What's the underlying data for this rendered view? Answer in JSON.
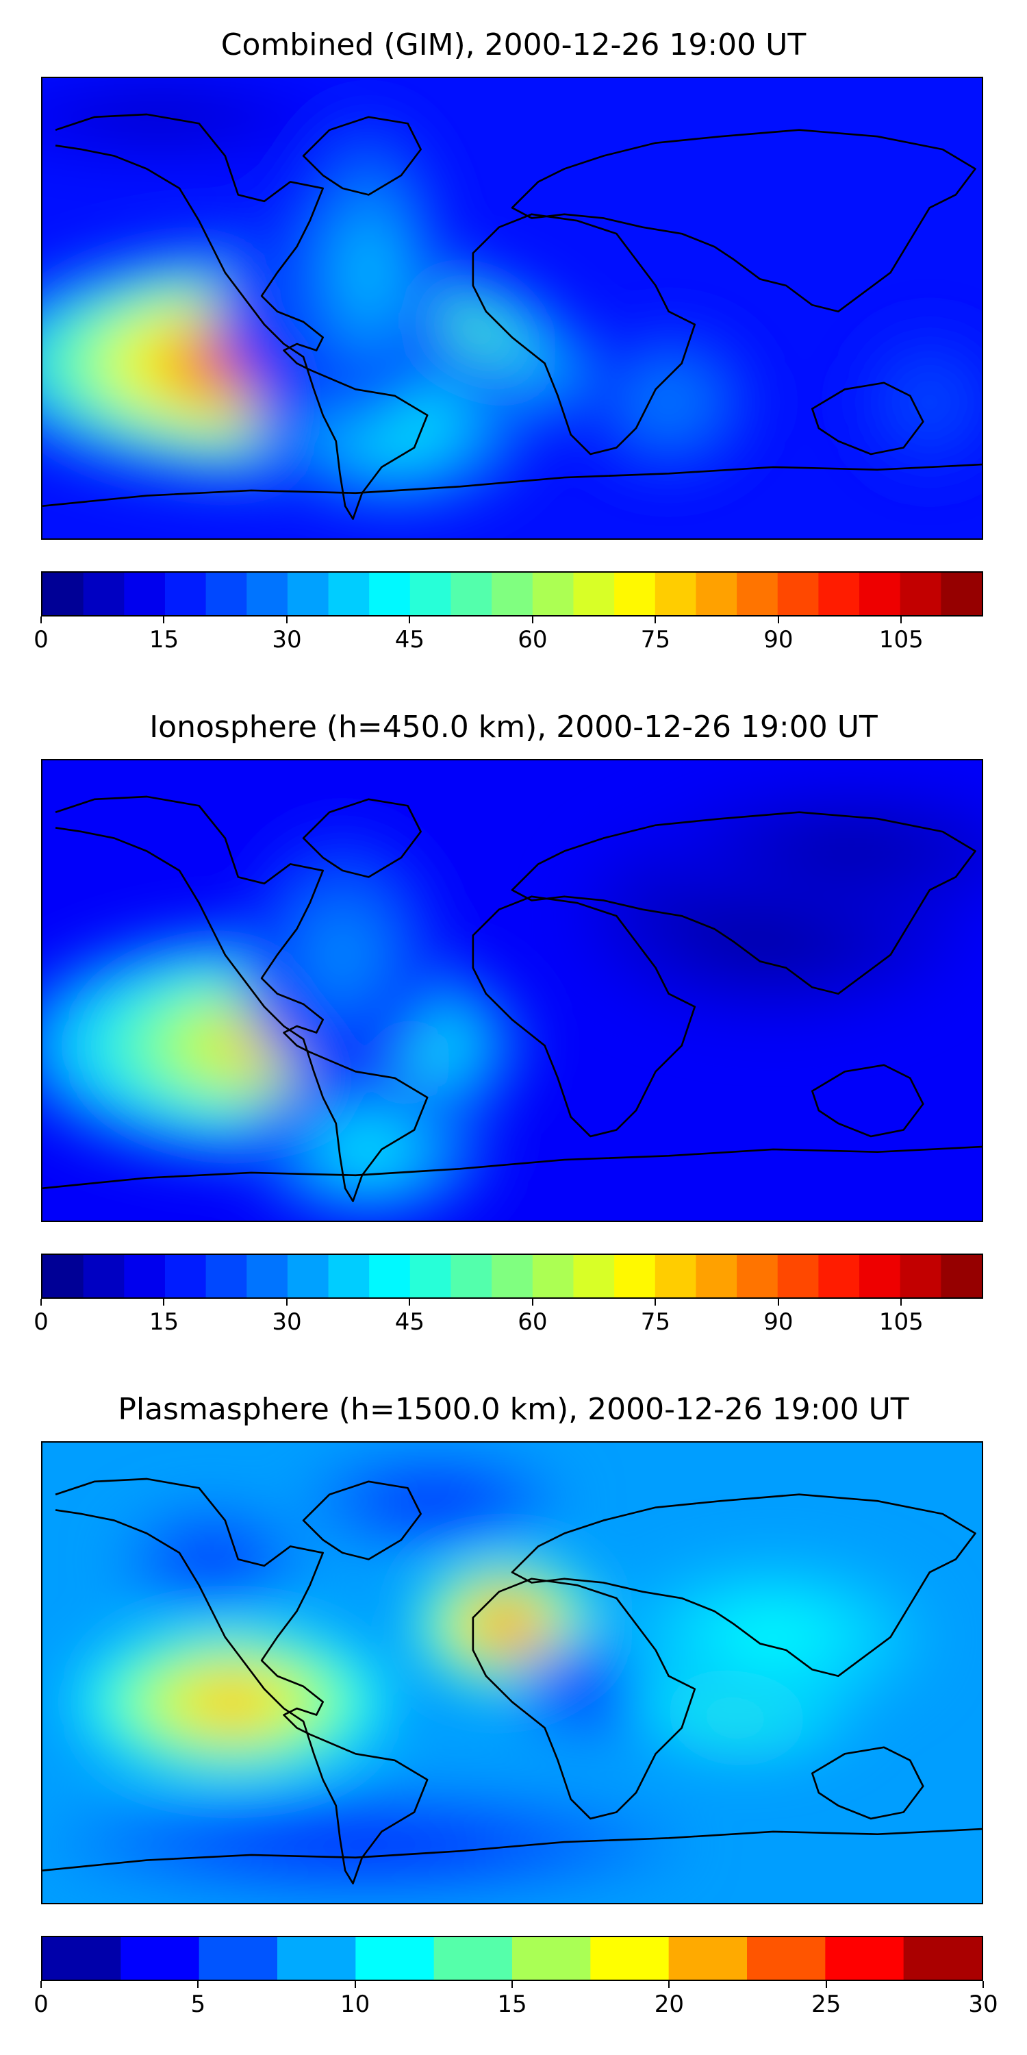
{
  "panels": [
    {
      "title": "Combined (GIM), 2000-12-26 19:00 UT",
      "colorbar_ticks": [
        "0",
        "15",
        "30",
        "45",
        "60",
        "75",
        "90",
        "105"
      ],
      "colorbar_range": [
        0,
        115
      ],
      "colorbar_steps": 23
    },
    {
      "title": "Ionosphere  (h=450.0 km), 2000-12-26 19:00 UT",
      "colorbar_ticks": [
        "0",
        "15",
        "30",
        "45",
        "60",
        "75",
        "90",
        "105"
      ],
      "colorbar_range": [
        0,
        115
      ],
      "colorbar_steps": 23
    },
    {
      "title": "Plasmasphere (h=1500.0 km), 2000-12-26 19:00 UT",
      "colorbar_ticks": [
        "0",
        "5",
        "10",
        "15",
        "20",
        "25",
        "30"
      ],
      "colorbar_range": [
        0,
        30
      ],
      "colorbar_steps": 12
    }
  ],
  "colormap": "jet"
}
